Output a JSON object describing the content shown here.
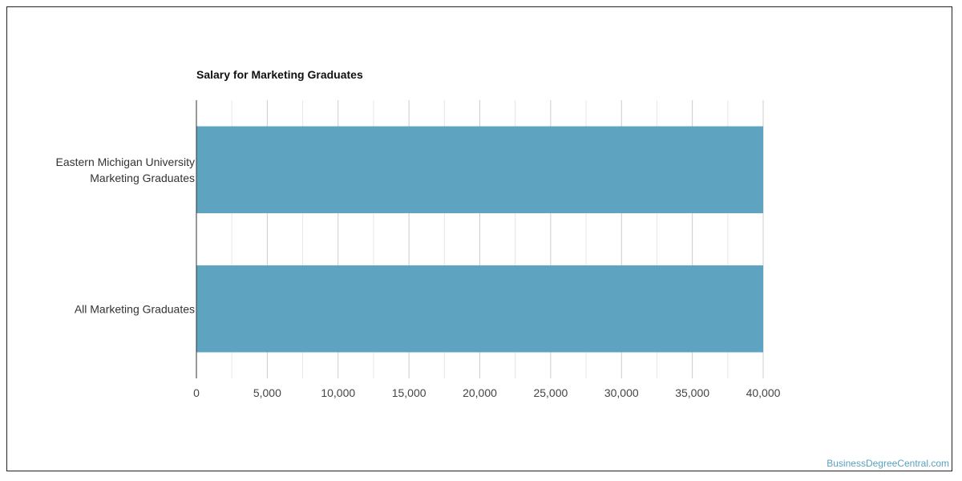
{
  "chart_data": {
    "type": "bar",
    "orientation": "horizontal",
    "title": "Salary for Marketing Graduates",
    "xlabel": "",
    "ylabel": "",
    "categories": [
      [
        "Eastern Michigan University",
        "Marketing Graduates"
      ],
      [
        "All Marketing Graduates"
      ]
    ],
    "values": [
      40000,
      40000
    ],
    "xlim": [
      0,
      40000
    ],
    "ticks": [
      "0",
      "5,000",
      "10,000",
      "15,000",
      "20,000",
      "25,000",
      "30,000",
      "35,000",
      "40,000"
    ],
    "tick_values": [
      0,
      5000,
      10000,
      15000,
      20000,
      25000,
      30000,
      35000,
      40000
    ],
    "grid": true,
    "legend": "none",
    "bar_color": "#5ea3c0"
  },
  "watermark": "BusinessDegreeCentral.com"
}
